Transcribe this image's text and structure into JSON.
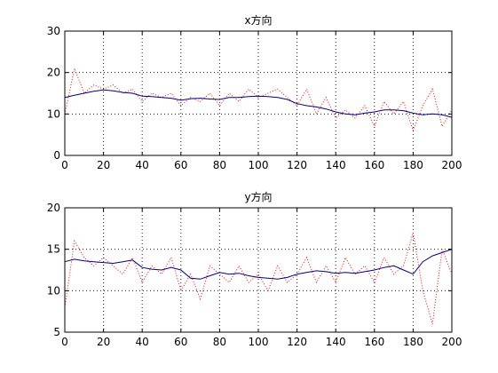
{
  "chart_data": [
    {
      "type": "line",
      "title": "x方向",
      "xlim": [
        0,
        200
      ],
      "ylim": [
        0,
        30
      ],
      "xticks": [
        0,
        20,
        40,
        60,
        80,
        100,
        120,
        140,
        160,
        180,
        200
      ],
      "yticks": [
        0,
        10,
        20,
        30
      ],
      "grid": true,
      "series": [
        {
          "color": "#ff0000",
          "style": "dotted",
          "x": [
            0,
            5,
            10,
            15,
            20,
            25,
            30,
            35,
            40,
            45,
            50,
            55,
            60,
            65,
            70,
            75,
            80,
            85,
            90,
            95,
            100,
            105,
            110,
            115,
            120,
            125,
            130,
            135,
            140,
            145,
            150,
            155,
            160,
            165,
            170,
            175,
            180,
            185,
            190,
            195,
            200
          ],
          "values": [
            10,
            21,
            15,
            17,
            16,
            17,
            15,
            16,
            13,
            15,
            14,
            15,
            12,
            14,
            13,
            15,
            12,
            15,
            13,
            16,
            14,
            15,
            16,
            14,
            12,
            16,
            10,
            14,
            9,
            11,
            9,
            12,
            7,
            13,
            10,
            13,
            6,
            12,
            16,
            7,
            11
          ]
        },
        {
          "color": "#000080",
          "style": "solid",
          "x": [
            0,
            5,
            10,
            15,
            20,
            25,
            30,
            35,
            40,
            45,
            50,
            55,
            60,
            65,
            70,
            75,
            80,
            85,
            90,
            95,
            100,
            105,
            110,
            115,
            120,
            125,
            130,
            135,
            140,
            145,
            150,
            155,
            160,
            165,
            170,
            175,
            180,
            185,
            190,
            195,
            200
          ],
          "values": [
            14,
            14.5,
            15,
            15.5,
            15.8,
            15.6,
            15.2,
            15,
            14.3,
            14.2,
            14,
            13.8,
            13.3,
            13.7,
            13.8,
            13.6,
            13.5,
            14,
            14,
            14.2,
            14.3,
            14.2,
            14,
            13.5,
            12.5,
            12,
            11.7,
            11.2,
            10.5,
            10,
            9.8,
            10.2,
            10.5,
            11,
            11,
            10.8,
            10.2,
            9.8,
            10,
            9.8,
            9.2
          ]
        }
      ]
    },
    {
      "type": "line",
      "title": "y方向",
      "xlim": [
        0,
        200
      ],
      "ylim": [
        5,
        20
      ],
      "xticks": [
        0,
        20,
        40,
        60,
        80,
        100,
        120,
        140,
        160,
        180,
        200
      ],
      "yticks": [
        5,
        10,
        15,
        20
      ],
      "grid": true,
      "series": [
        {
          "color": "#ff0000",
          "style": "dotted",
          "x": [
            0,
            5,
            10,
            15,
            20,
            25,
            30,
            35,
            40,
            45,
            50,
            55,
            60,
            65,
            70,
            75,
            80,
            85,
            90,
            95,
            100,
            105,
            110,
            115,
            120,
            125,
            130,
            135,
            140,
            145,
            150,
            155,
            160,
            165,
            170,
            175,
            180,
            185,
            190,
            195,
            200
          ],
          "values": [
            8,
            16,
            14,
            13,
            14,
            13,
            12,
            14,
            11,
            13,
            12,
            14,
            10,
            12,
            9,
            13,
            12,
            11,
            13,
            11,
            12,
            10,
            13,
            11,
            12,
            14,
            11,
            13,
            11,
            14,
            12,
            13,
            11,
            14,
            12,
            13,
            17,
            10,
            6,
            15,
            12
          ]
        },
        {
          "color": "#000080",
          "style": "solid",
          "x": [
            0,
            5,
            10,
            15,
            20,
            25,
            30,
            35,
            40,
            45,
            50,
            55,
            60,
            65,
            70,
            75,
            80,
            85,
            90,
            95,
            100,
            105,
            110,
            115,
            120,
            125,
            130,
            135,
            140,
            145,
            150,
            155,
            160,
            165,
            170,
            175,
            180,
            185,
            190,
            195,
            200
          ],
          "values": [
            13.5,
            13.8,
            13.6,
            13.5,
            13.4,
            13.3,
            13.5,
            13.7,
            12.8,
            12.6,
            12.5,
            12.8,
            12.5,
            11.5,
            11.4,
            11.8,
            12.2,
            12,
            12.1,
            11.8,
            11.6,
            11.5,
            11.4,
            11.6,
            12,
            12.2,
            12.4,
            12.3,
            12.1,
            12.2,
            12.1,
            12.3,
            12.5,
            12.8,
            13,
            12.5,
            12,
            13.5,
            14.2,
            14.6,
            15
          ]
        }
      ]
    }
  ]
}
